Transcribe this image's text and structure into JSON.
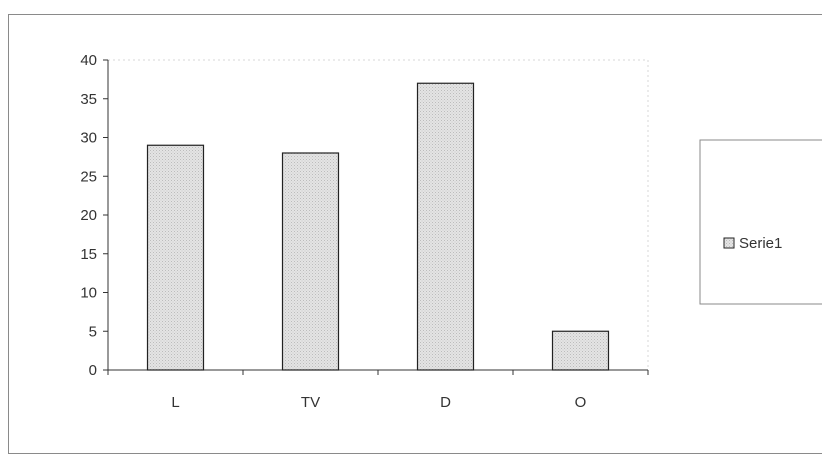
{
  "chart_data": {
    "type": "bar",
    "categories": [
      "L",
      "TV",
      "D",
      "O"
    ],
    "series": [
      {
        "name": "Serie1",
        "values": [
          29,
          28,
          37,
          5
        ]
      }
    ],
    "ylim": [
      0,
      40
    ],
    "yticks": [
      "0",
      "5",
      "10",
      "15",
      "20",
      "25",
      "30",
      "35",
      "40"
    ],
    "grid": false,
    "legend": "right",
    "colors": {
      "bar_fill": "#e2e2e2",
      "bar_stroke": "#222222"
    }
  }
}
